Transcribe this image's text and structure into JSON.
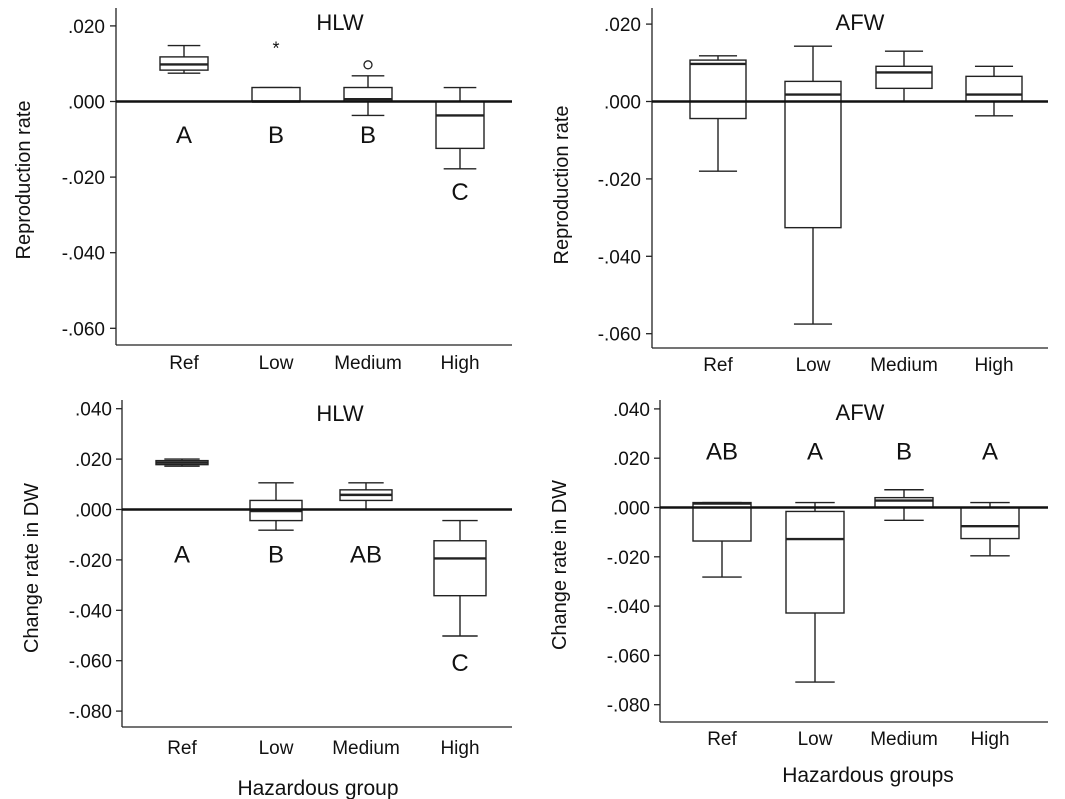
{
  "chart_data": [
    {
      "type": "box",
      "title": "HLW",
      "ylabel": "Reproduction rate",
      "xlabel": "",
      "categories": [
        "Ref",
        "Low",
        "Medium",
        "High"
      ],
      "yticks": [
        ".020",
        ".000",
        "-.020",
        "-.040",
        "-.060"
      ],
      "ylim": [
        -0.065,
        0.024
      ],
      "reference_line": 0,
      "boxes": [
        {
          "min": 0.0075,
          "q1": 0.0083,
          "median": 0.0098,
          "q3": 0.0118,
          "max": 0.0148
        },
        {
          "min": 0.0,
          "q1": 0.0,
          "median": 0.0,
          "q3": 0.0037,
          "max": 0.0037
        },
        {
          "min": -0.0037,
          "q1": 0.0,
          "median": 0.0006,
          "q3": 0.0037,
          "max": 0.0068
        },
        {
          "min": -0.0178,
          "q1": -0.0124,
          "median": -0.0037,
          "q3": 0.0,
          "max": 0.0037
        }
      ],
      "outliers": [
        {
          "category": "Low",
          "value": 0.0148,
          "marker": "*"
        },
        {
          "category": "Medium",
          "value": 0.0097,
          "marker": "o"
        }
      ],
      "group_letters": [
        {
          "category": "Ref",
          "text": "A",
          "y": -0.011
        },
        {
          "category": "Low",
          "text": "B",
          "y": -0.011
        },
        {
          "category": "Medium",
          "text": "B",
          "y": -0.011
        },
        {
          "category": "High",
          "text": "C",
          "y": -0.026
        }
      ]
    },
    {
      "type": "box",
      "title": "AFW",
      "ylabel": "Reproduction rate",
      "xlabel": "",
      "categories": [
        "Ref",
        "Low",
        "Medium",
        "High"
      ],
      "yticks": [
        ".020",
        ".000",
        "-.020",
        "-.040",
        "-.060"
      ],
      "ylim": [
        -0.063,
        0.024
      ],
      "reference_line": 0,
      "boxes": [
        {
          "min": -0.018,
          "q1": -0.0044,
          "median": 0.0097,
          "q3": 0.0107,
          "max": 0.0118
        },
        {
          "min": -0.0575,
          "q1": -0.0326,
          "median": 0.0018,
          "q3": 0.0052,
          "max": 0.0143
        },
        {
          "min": 0.0,
          "q1": 0.0034,
          "median": 0.0075,
          "q3": 0.0091,
          "max": 0.013
        },
        {
          "min": -0.0037,
          "q1": 0.0,
          "median": 0.0018,
          "q3": 0.0065,
          "max": 0.0091
        }
      ],
      "outliers": [],
      "group_letters": []
    },
    {
      "type": "box",
      "title": "HLW",
      "ylabel": "Change rate in DW",
      "xlabel": "Hazardous group",
      "categories": [
        "Ref",
        "Low",
        "Medium",
        "High"
      ],
      "yticks": [
        ".040",
        ".020",
        ".000",
        "-.020",
        "-.040",
        "-.060",
        "-.080"
      ],
      "ylim": [
        -0.088,
        0.044
      ],
      "reference_line": 0,
      "boxes": [
        {
          "min": 0.0172,
          "q1": 0.0178,
          "median": 0.0186,
          "q3": 0.0194,
          "max": 0.02
        },
        {
          "min": -0.0082,
          "q1": -0.0044,
          "median": -0.0006,
          "q3": 0.0036,
          "max": 0.0106
        },
        {
          "min": 0.0,
          "q1": 0.0036,
          "median": 0.0058,
          "q3": 0.0078,
          "max": 0.0106
        },
        {
          "min": -0.0502,
          "q1": -0.0342,
          "median": -0.0194,
          "q3": -0.0124,
          "max": -0.0044
        }
      ],
      "outliers": [],
      "group_letters": [
        {
          "category": "Ref",
          "text": "A",
          "y": -0.021
        },
        {
          "category": "Low",
          "text": "B",
          "y": -0.021
        },
        {
          "category": "Medium",
          "text": "AB",
          "y": -0.021
        },
        {
          "category": "High",
          "text": "C",
          "y": -0.064
        }
      ]
    },
    {
      "type": "box",
      "title": "AFW",
      "ylabel": "Change rate in DW",
      "xlabel": "Hazardous groups",
      "categories": [
        "Ref",
        "Low",
        "Medium",
        "High"
      ],
      "yticks": [
        ".040",
        ".020",
        ".000",
        "-.020",
        "-.040",
        "-.060",
        "-.080"
      ],
      "ylim": [
        -0.087,
        0.044
      ],
      "reference_line": 0,
      "boxes": [
        {
          "min": -0.0282,
          "q1": -0.0136,
          "median": 0.0016,
          "q3": 0.002,
          "max": 0.002
        },
        {
          "min": -0.0708,
          "q1": -0.0428,
          "median": -0.0128,
          "q3": -0.0016,
          "max": 0.002
        },
        {
          "min": -0.0052,
          "q1": 0.0,
          "median": 0.0028,
          "q3": 0.004,
          "max": 0.0072
        },
        {
          "min": -0.0196,
          "q1": -0.0126,
          "median": -0.0076,
          "q3": 0.0,
          "max": 0.002
        }
      ],
      "outliers": [],
      "group_letters": [
        {
          "category": "Ref",
          "text": "AB",
          "y": 0.0195
        },
        {
          "category": "Low",
          "text": "A",
          "y": 0.0195
        },
        {
          "category": "Medium",
          "text": "B",
          "y": 0.0195
        },
        {
          "category": "High",
          "text": "A",
          "y": 0.0195
        }
      ]
    }
  ]
}
